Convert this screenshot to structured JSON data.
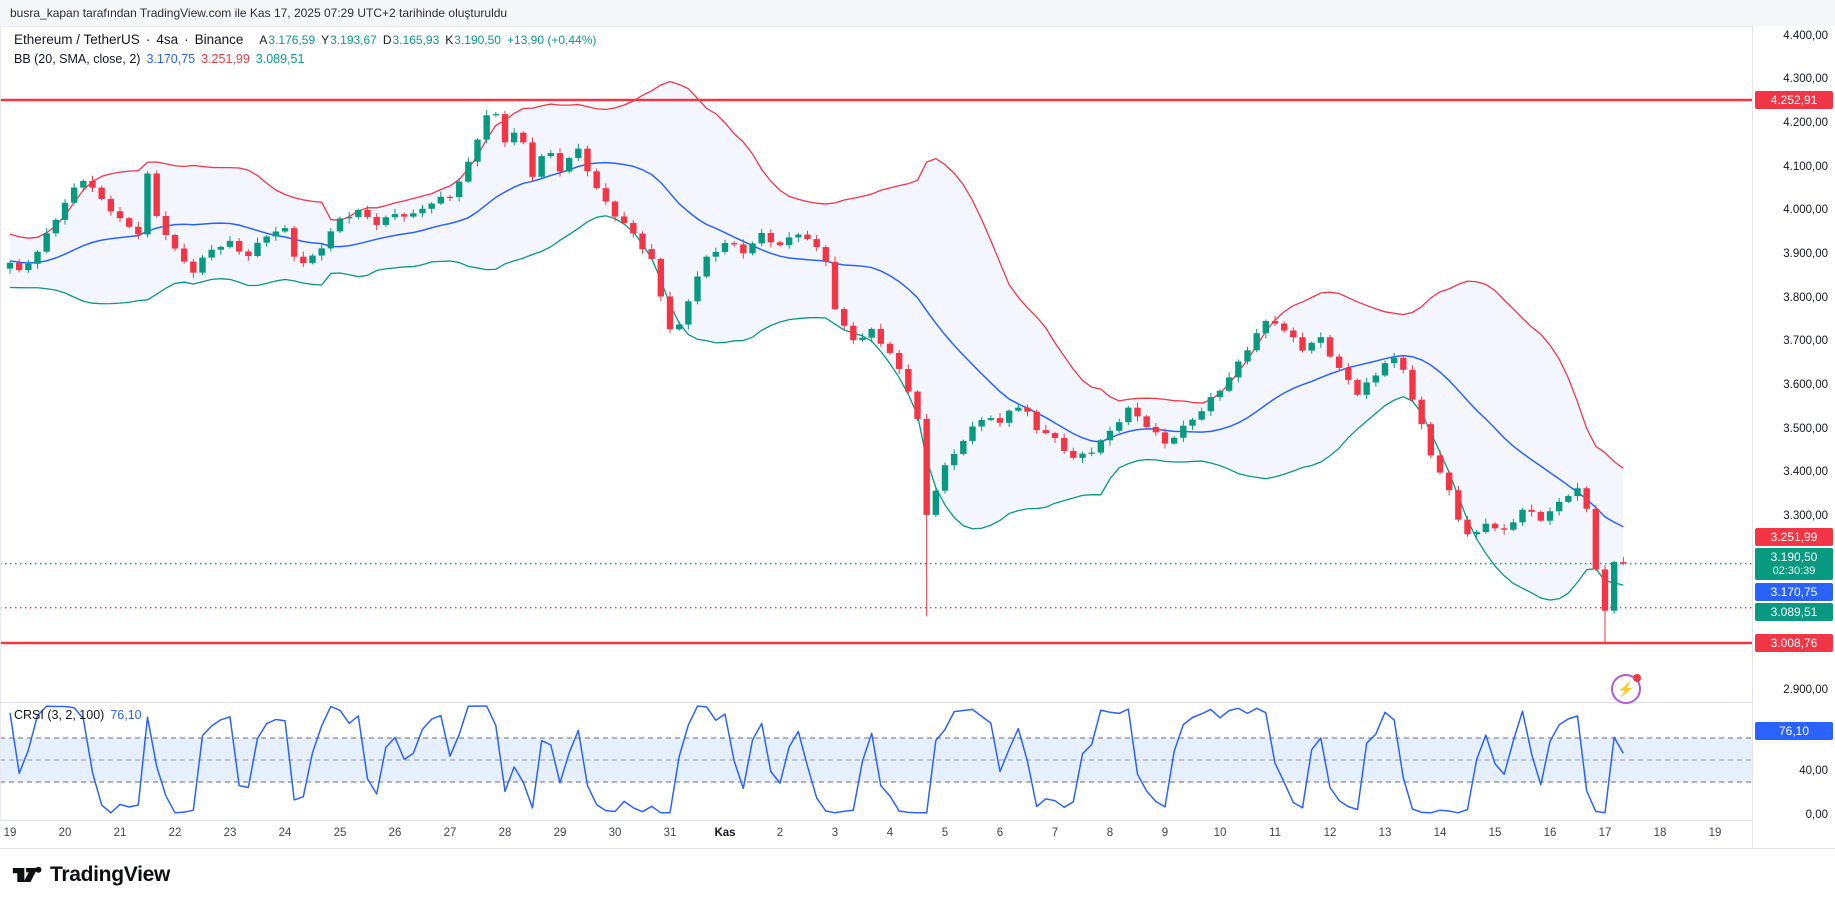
{
  "attribution": "busra_kapan tarafından TradingView.com ile Kas 17, 2025 07:29 UTC+2 tarihinde oluşturuldu",
  "legend": {
    "symbol": "Ethereum / TetherUS",
    "separator1": "·",
    "timeframe": "4sa",
    "separator2": "·",
    "exchange": "Binance",
    "open_label": "A",
    "open_value": "3.176,59",
    "high_label": "Y",
    "high_value": "3.193,67",
    "low_label": "D",
    "low_value": "3.165,93",
    "close_label": "K",
    "close_value": "3.190,50",
    "change": "+13,90 (+0,44%)"
  },
  "bb_legend": {
    "name": "BB (20, SMA, close, 2)",
    "basis": "3.170,75",
    "upper": "3.251,99",
    "lower": "3.089,51"
  },
  "crsi_legend": {
    "name": "CRSI (3, 2, 100)",
    "value": "76,10"
  },
  "logo_text": "TradingView",
  "flash_icon": "⚡",
  "colors": {
    "up": "#089981",
    "down": "#f23645",
    "bb_basis": "#2962ff",
    "bb_upper": "#f23645",
    "bb_lower": "#089981",
    "bb_fill": "rgba(41,98,255,0.055)",
    "crsi_line": "#2962ff",
    "crsi_band_fill": "rgba(59,130,246,0.13)",
    "badge_blue": "#2962ff",
    "badge_green": "#089981",
    "badge_red": "#f23645"
  },
  "price_axis_ticks": [
    {
      "label": "4.400,00",
      "price": 4400
    },
    {
      "label": "4.300,00",
      "price": 4300
    },
    {
      "label": "4.200,00",
      "price": 4200
    },
    {
      "label": "4.100,00",
      "price": 4100
    },
    {
      "label": "4.000,00",
      "price": 4000
    },
    {
      "label": "3.900,00",
      "price": 3900
    },
    {
      "label": "3.800,00",
      "price": 3800
    },
    {
      "label": "3.700,00",
      "price": 3700
    },
    {
      "label": "3.600,00",
      "price": 3600
    },
    {
      "label": "3.500,00",
      "price": 3500
    },
    {
      "label": "3.400,00",
      "price": 3400
    },
    {
      "label": "3.300,00",
      "price": 3300
    },
    {
      "label": "2.900,00",
      "price": 2900
    }
  ],
  "crsi_axis_ticks": [
    {
      "label": "40,00",
      "value": 40
    },
    {
      "label": "0,00",
      "value": 0
    }
  ],
  "badges": [
    {
      "label": "4.252,91",
      "price": 4252.91,
      "color": "badge_red"
    },
    {
      "label": "3.251,99",
      "price": 3251.99,
      "color": "badge_red"
    },
    {
      "label": "3.190,50",
      "price": 3190.5,
      "color": "badge_green",
      "sub": "02:30:39"
    },
    {
      "label": "3.170,75",
      "price": 3170.75,
      "color": "badge_blue"
    },
    {
      "label": "3.089,51",
      "price": 3089.51,
      "color": "badge_green"
    },
    {
      "label": "3.008,76",
      "price": 3008.76,
      "color": "badge_red"
    }
  ],
  "crsi_badge": {
    "label": "76,10",
    "value": 76.1,
    "color": "badge_blue"
  },
  "time_axis": {
    "labels": [
      "19",
      "20",
      "21",
      "22",
      "23",
      "24",
      "25",
      "26",
      "27",
      "28",
      "29",
      "30",
      "31",
      "Kas",
      "2",
      "3",
      "4",
      "5",
      "6",
      "7",
      "8",
      "9",
      "10",
      "11",
      "12",
      "13",
      "14",
      "15",
      "16",
      "17",
      "18",
      "19"
    ],
    "bold_label": "Kas"
  },
  "chart_data": {
    "type": "candlestick",
    "title": "Ethereum / TetherUS · 4sa · Binance",
    "interval": "4h",
    "ohlc_current": {
      "open": 3176.59,
      "high": 3193.67,
      "low": 3165.93,
      "close": 3190.5,
      "change": 13.9,
      "change_pct": 0.44
    },
    "bollinger": {
      "length": 20,
      "source": "close",
      "mult": 2,
      "basis": 3170.75,
      "upper": 3251.99,
      "lower": 3089.51
    },
    "crsi": {
      "params": [
        3,
        2,
        100
      ],
      "last": 76.1,
      "bands": [
        30,
        50,
        70
      ],
      "range": [
        0,
        100
      ]
    },
    "horizontal_lines": [
      {
        "price": 4252.91,
        "style": "solid",
        "color": "#f23645"
      },
      {
        "price": 3008.76,
        "style": "solid",
        "color": "#f23645"
      },
      {
        "price": 3190.5,
        "style": "dotted",
        "color": "#089981"
      },
      {
        "price": 3089.51,
        "style": "dotted",
        "color": "#f23645"
      }
    ],
    "x_range_days": {
      "first_label": "19 Eki",
      "last_label": "19 Kas",
      "bars_per_day": 6,
      "last_bar_day": 29.25
    },
    "close_path_anchors": [
      [
        0,
        3880
      ],
      [
        0.17,
        3855
      ],
      [
        0.5,
        3900
      ],
      [
        0.83,
        3985
      ],
      [
        1.17,
        4055
      ],
      [
        1.33,
        4075
      ],
      [
        1.67,
        4020
      ],
      [
        2,
        3975
      ],
      [
        2.33,
        3950
      ],
      [
        2.5,
        4085
      ],
      [
        2.67,
        3990
      ],
      [
        3,
        3905
      ],
      [
        3.33,
        3855
      ],
      [
        3.67,
        3915
      ],
      [
        4,
        3930
      ],
      [
        4.33,
        3895
      ],
      [
        4.67,
        3940
      ],
      [
        5,
        3955
      ],
      [
        5.25,
        3875
      ],
      [
        5.58,
        3905
      ],
      [
        6,
        3975
      ],
      [
        6.33,
        3995
      ],
      [
        6.67,
        3975
      ],
      [
        7,
        3995
      ],
      [
        7.33,
        3985
      ],
      [
        7.67,
        4015
      ],
      [
        8,
        4035
      ],
      [
        8.33,
        4110
      ],
      [
        8.58,
        4195
      ],
      [
        8.75,
        4240
      ],
      [
        9,
        4155
      ],
      [
        9.25,
        4185
      ],
      [
        9.5,
        4085
      ],
      [
        9.75,
        4150
      ],
      [
        10,
        4095
      ],
      [
        10.33,
        4135
      ],
      [
        10.67,
        4045
      ],
      [
        11,
        3995
      ],
      [
        11.33,
        3950
      ],
      [
        11.67,
        3880
      ],
      [
        11.92,
        3755
      ],
      [
        12.08,
        3700
      ],
      [
        12.33,
        3795
      ],
      [
        12.58,
        3885
      ],
      [
        13,
        3925
      ],
      [
        13.33,
        3900
      ],
      [
        13.67,
        3945
      ],
      [
        14,
        3925
      ],
      [
        14.33,
        3950
      ],
      [
        14.58,
        3920
      ],
      [
        14.83,
        3885
      ],
      [
        15,
        3770
      ],
      [
        15.17,
        3735
      ],
      [
        15.42,
        3700
      ],
      [
        15.67,
        3730
      ],
      [
        16,
        3665
      ],
      [
        16.25,
        3615
      ],
      [
        16.42,
        3555
      ],
      [
        16.58,
        3480
      ],
      [
        16.67,
        3300
      ],
      [
        16.83,
        3365
      ],
      [
        17,
        3415
      ],
      [
        17.25,
        3460
      ],
      [
        17.5,
        3495
      ],
      [
        17.75,
        3530
      ],
      [
        18,
        3510
      ],
      [
        18.17,
        3550
      ],
      [
        18.42,
        3555
      ],
      [
        18.67,
        3500
      ],
      [
        19,
        3470
      ],
      [
        19.33,
        3430
      ],
      [
        19.67,
        3455
      ],
      [
        20,
        3495
      ],
      [
        20.33,
        3540
      ],
      [
        20.67,
        3505
      ],
      [
        21,
        3470
      ],
      [
        21.33,
        3505
      ],
      [
        21.67,
        3540
      ],
      [
        22,
        3585
      ],
      [
        22.33,
        3650
      ],
      [
        22.67,
        3725
      ],
      [
        22.92,
        3755
      ],
      [
        23.17,
        3720
      ],
      [
        23.5,
        3680
      ],
      [
        23.83,
        3710
      ],
      [
        24.17,
        3640
      ],
      [
        24.5,
        3580
      ],
      [
        24.83,
        3615
      ],
      [
        25.08,
        3670
      ],
      [
        25.33,
        3640
      ],
      [
        25.58,
        3545
      ],
      [
        25.83,
        3440
      ],
      [
        26.08,
        3380
      ],
      [
        26.33,
        3290
      ],
      [
        26.58,
        3245
      ],
      [
        26.83,
        3290
      ],
      [
        27.17,
        3265
      ],
      [
        27.5,
        3310
      ],
      [
        27.83,
        3290
      ],
      [
        28.08,
        3320
      ],
      [
        28.33,
        3355
      ],
      [
        28.58,
        3370
      ],
      [
        28.75,
        3260
      ],
      [
        28.92,
        3095
      ],
      [
        29,
        3075
      ],
      [
        29.08,
        3185
      ],
      [
        29.25,
        3190.5
      ]
    ],
    "wick_overrides": [
      {
        "day": 16.67,
        "low": 3070
      },
      {
        "day": 29,
        "low": 3008.76
      },
      {
        "day": 8.75,
        "high": 4252.91
      }
    ]
  }
}
